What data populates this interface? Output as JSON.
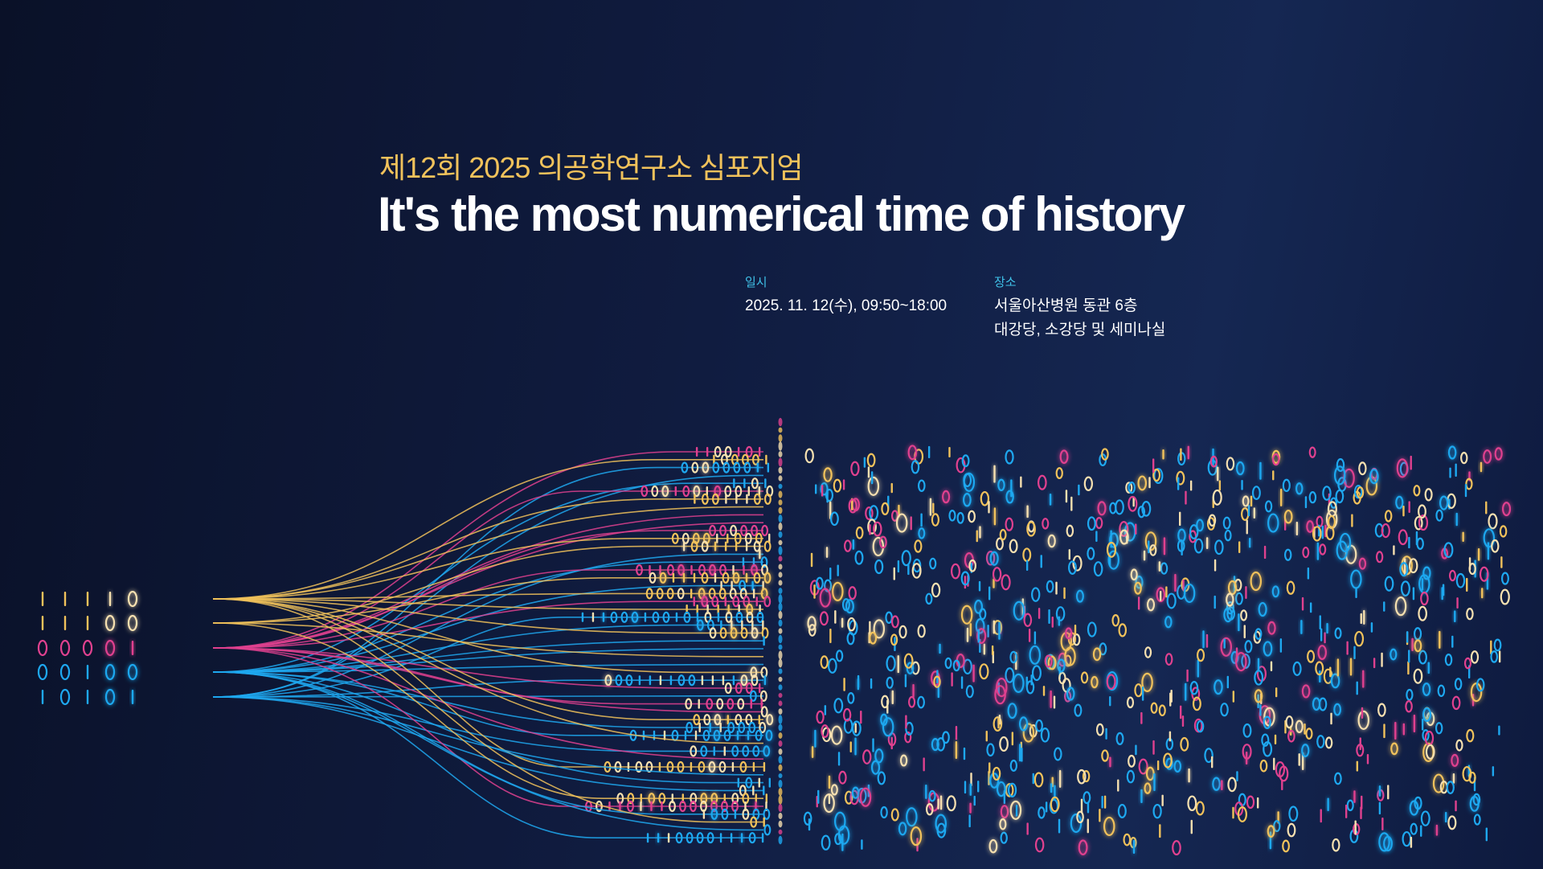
{
  "header": {
    "subtitle": "제12회  2025 의공학연구소 심포지엄",
    "title": "It's the most numerical time of history"
  },
  "details": {
    "date_label": "일시",
    "date_value": "2025. 11. 12(수), 09:50~18:00",
    "venue_label": "장소",
    "venue_line1": "서울아산병원 동관 6층",
    "venue_line2": "대강당, 소강당 및 세미나실"
  },
  "colors": {
    "background": "#0e1a3e",
    "accent_yellow": "#f1c25b",
    "accent_pink": "#e0418f",
    "accent_blue": "#1ea8f0",
    "accent_cream": "#f6e0b0",
    "label_cyan": "#3fc1e8"
  }
}
